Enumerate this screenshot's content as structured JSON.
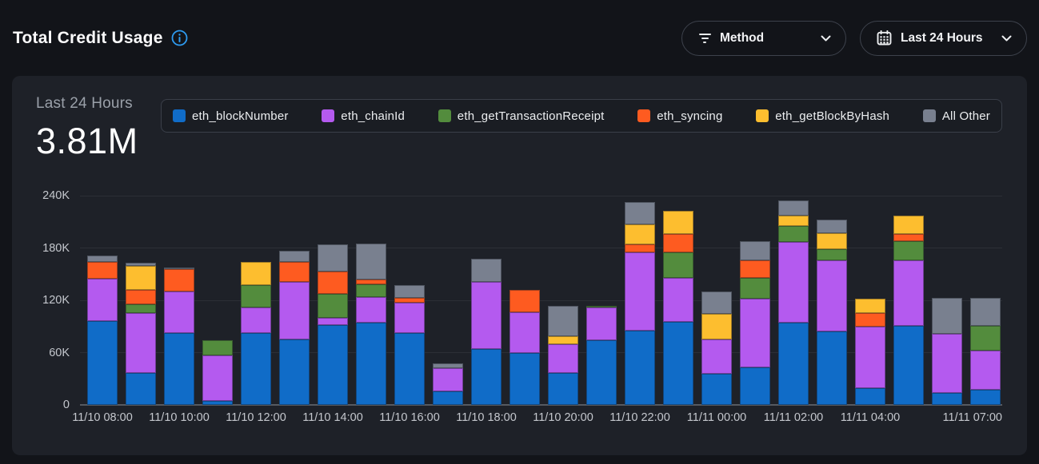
{
  "header": {
    "title": "Total Credit Usage",
    "controls": [
      {
        "label": "Method"
      },
      {
        "label": "Last 24 Hours"
      }
    ]
  },
  "panel": {
    "stat_label": "Last 24 Hours",
    "stat_value": "3.81M"
  },
  "colors": {
    "accent_info": "#2e9bf0",
    "page_bg": "#121419",
    "card_bg": "#1e2128"
  },
  "chart_data": {
    "type": "bar",
    "stacked": true,
    "title": "Total Credit Usage — Last 24 Hours",
    "total_label": "3.81M",
    "ylim": [
      0,
      240000
    ],
    "grid": true,
    "legend_position": "top",
    "yticks": [
      {
        "value": 0,
        "label": "0"
      },
      {
        "value": 60000,
        "label": "60K"
      },
      {
        "value": 120000,
        "label": "120K"
      },
      {
        "value": 180000,
        "label": "180K"
      },
      {
        "value": 240000,
        "label": "240K"
      }
    ],
    "categories": [
      "11/10 08:00",
      "11/10 09:00",
      "11/10 10:00",
      "11/10 11:00",
      "11/10 12:00",
      "11/10 13:00",
      "11/10 14:00",
      "11/10 15:00",
      "11/10 16:00",
      "11/10 17:00",
      "11/10 18:00",
      "11/10 19:00",
      "11/10 20:00",
      "11/10 21:00",
      "11/10 22:00",
      "11/10 23:00",
      "11/11 00:00",
      "11/11 01:00",
      "11/11 02:00",
      "11/11 03:00",
      "11/11 04:00",
      "11/11 05:00",
      "11/11 06:00",
      "11/11 07:00"
    ],
    "x_ticks": [
      {
        "bar": 0,
        "label": "11/10 08:00"
      },
      {
        "bar": 2,
        "label": "11/10 10:00"
      },
      {
        "bar": 4,
        "label": "11/10 12:00"
      },
      {
        "bar": 6,
        "label": "11/10 14:00"
      },
      {
        "bar": 8,
        "label": "11/10 16:00"
      },
      {
        "bar": 10,
        "label": "11/10 18:00"
      },
      {
        "bar": 12,
        "label": "11/10 20:00"
      },
      {
        "bar": 14,
        "label": "11/10 22:00"
      },
      {
        "bar": 16,
        "label": "11/11 00:00"
      },
      {
        "bar": 18,
        "label": "11/11 02:00"
      },
      {
        "bar": 20,
        "label": "11/11 04:00"
      },
      {
        "bar": 23,
        "label": "11/11 07:00",
        "align": "right"
      }
    ],
    "series": [
      {
        "name": "eth_blockNumber",
        "color": "#106cc8",
        "values": [
          96000,
          37000,
          82000,
          5000,
          82000,
          75000,
          92000,
          94000,
          82000,
          16000,
          64000,
          60000,
          37000,
          74000,
          85000,
          95000,
          36000,
          43000,
          94000,
          84000,
          19000,
          91000,
          14000,
          17000
        ]
      },
      {
        "name": "eth_chainId",
        "color": "#b45aef",
        "values": [
          49000,
          68000,
          48000,
          52000,
          30000,
          66000,
          8000,
          30000,
          35000,
          26000,
          77000,
          46000,
          33000,
          38000,
          90000,
          51000,
          39000,
          79000,
          93000,
          82000,
          71000,
          75000,
          68000,
          45000
        ]
      },
      {
        "name": "eth_getTransactionReceipt",
        "color": "#538c3d",
        "values": [
          0,
          10000,
          0,
          17000,
          25000,
          0,
          27000,
          14000,
          0,
          0,
          0,
          0,
          0,
          2000,
          0,
          29000,
          0,
          24000,
          18000,
          13000,
          0,
          22000,
          0,
          29000
        ]
      },
      {
        "name": "eth_syncing",
        "color": "#fe5b20",
        "values": [
          19000,
          17000,
          26000,
          0,
          0,
          23000,
          26000,
          6000,
          6000,
          0,
          0,
          26000,
          0,
          0,
          9000,
          21000,
          0,
          20000,
          0,
          0,
          15000,
          8000,
          0,
          0
        ]
      },
      {
        "name": "eth_getBlockByHash",
        "color": "#fdbe2f",
        "values": [
          0,
          27000,
          0,
          0,
          27000,
          0,
          0,
          0,
          0,
          0,
          0,
          0,
          9000,
          0,
          23000,
          27000,
          29000,
          0,
          12000,
          18000,
          17000,
          21000,
          0,
          0
        ]
      },
      {
        "name": "All Other",
        "color": "#79808f",
        "values": [
          7000,
          4000,
          2000,
          0,
          0,
          13000,
          31000,
          41000,
          14000,
          6000,
          27000,
          0,
          35000,
          0,
          26000,
          0,
          26000,
          22000,
          18000,
          16000,
          0,
          0,
          41000,
          32000
        ]
      }
    ]
  }
}
